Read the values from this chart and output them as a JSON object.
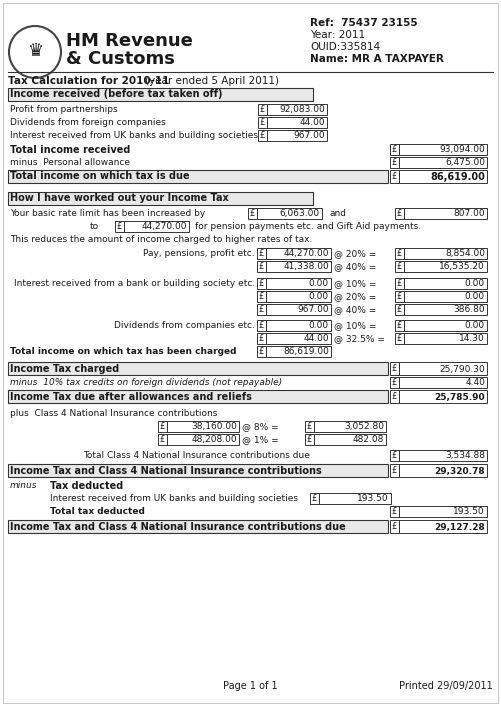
{
  "ref": "Ref:  75437 23155",
  "year": "Year: 2011",
  "ouid": "OUID:335814",
  "name": "Name: MR A TAXPAYER",
  "title": "Tax Calculation for 2010-11",
  "year_ended": "(year ended 5 April 2011)",
  "section1_header": "Income received (before tax taken off)",
  "profit_label": "Profit from partnerships",
  "profit_val": "92,083.00",
  "dividends_foreign_label": "Dividends from foreign companies",
  "dividends_foreign_val": "44.00",
  "interest_uk_label": "Interest received from UK banks and building societies",
  "interest_uk_val": "967.00",
  "total_income_label": "Total income received",
  "total_income_val": "93,094.00",
  "personal_allowance_label": "minus  Personal allowance",
  "personal_allowance_val": "6,475.00",
  "taxable_income_label": "Total income on which tax is due",
  "taxable_income_val": "86,619.00",
  "section2_header": "How I have worked out your Income Tax",
  "basic_rate_text1": "Your basic rate limit has been increased by",
  "basic_rate_val1": "6,063.00",
  "basic_rate_and": "and",
  "basic_rate_val2": "807.00",
  "basic_rate_to": "to",
  "basic_rate_to_val": "44,270.00",
  "basic_rate_text2": "for pension payments etc. and Gift Aid payments.",
  "higher_rate_text": "This reduces the amount of income charged to higher rates of tax.",
  "pay_label": "Pay, pensions, profit etc.",
  "pay_val1": "44,270.00",
  "pay_rate1": "@ 20% =",
  "pay_tax1": "8,854.00",
  "pay_val2": "41,338.00",
  "pay_rate2": "@ 40% =",
  "pay_tax2": "16,535.20",
  "interest_label": "Interest received from a bank or building society etc.",
  "interest_val1": "0.00",
  "interest_rate1": "@ 10% =",
  "interest_tax1": "0.00",
  "interest_val2": "0.00",
  "interest_rate2": "@ 20% =",
  "interest_tax2": "0.00",
  "interest_val3": "967.00",
  "interest_rate3": "@ 40% =",
  "interest_tax3": "386.80",
  "divs_label": "Dividends from companies etc.",
  "divs_val1": "0.00",
  "divs_rate1": "@ 10% =",
  "divs_tax1": "0.00",
  "divs_val2": "44.00",
  "divs_rate2": "@ 32.5% =",
  "divs_tax2": "14.30",
  "total_charged_label": "Total income on which tax has been charged",
  "total_charged_val": "86,619.00",
  "income_tax_charged_label": "Income Tax charged",
  "income_tax_charged_val": "25,790.30",
  "minus_credits_label": "minus  10% tax credits on foreign dividends (not repayable)",
  "minus_credits_val": "4.40",
  "income_tax_due_label": "Income Tax due after allowances and reliefs",
  "income_tax_due_val": "25,785.90",
  "nic_label": "plus  Class 4 National Insurance contributions",
  "nic_val1": "38,160.00",
  "nic_rate1": "@ 8% =",
  "nic_tax1": "3,052.80",
  "nic_val2": "48,208.00",
  "nic_rate2": "@ 1% =",
  "nic_tax2": "482.08",
  "nic_total_label": "Total Class 4 National Insurance contributions due",
  "nic_total_val": "3,534.88",
  "it_nic_label": "Income Tax and Class 4 National Insurance contributions",
  "it_nic_val": "29,320.78",
  "minus_label": "minus",
  "tax_deducted_header": "Tax deducted",
  "interest_deducted_label": "Interest received from UK banks and building societies",
  "interest_deducted_val": "193.50",
  "total_tax_deducted_label": "Total tax deducted",
  "total_tax_deducted_val": "193.50",
  "final_label": "Income Tax and Class 4 National Insurance contributions due",
  "final_val": "29,127.28",
  "page": "Page 1 of 1",
  "printed": "Printed 29/09/2011",
  "bg_color": "#ffffff",
  "text_color": "#1a1a1a",
  "box_color": "#333333",
  "light_grey": "#e8e8e8"
}
